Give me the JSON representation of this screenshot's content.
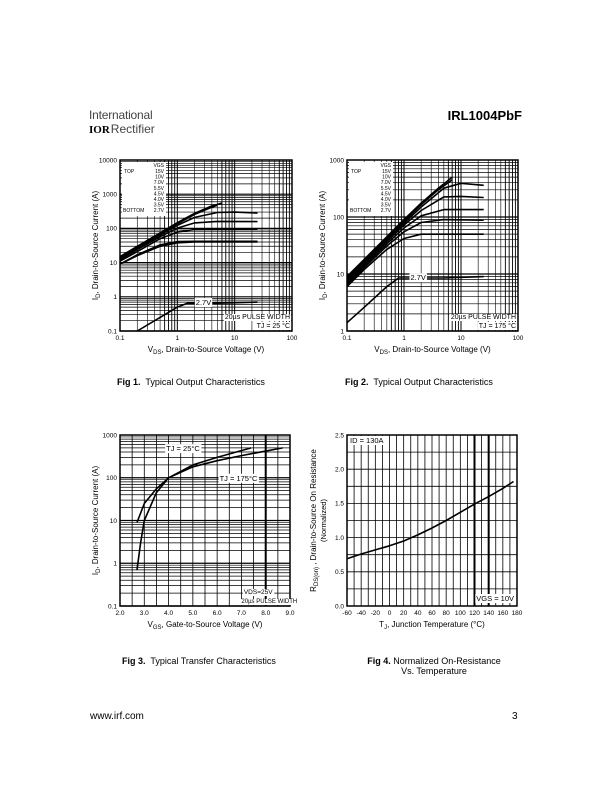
{
  "header": {
    "logo_line1": "International",
    "logo_mark": "IOR",
    "logo_line2": "Rectifier",
    "part_number": "IRL1004PbF"
  },
  "footer": {
    "url": "www.irf.com",
    "page": "3"
  },
  "captions": [
    {
      "fig": "Fig 1.",
      "text": "Typical Output Characteristics"
    },
    {
      "fig": "Fig 2.",
      "text": "Typical Output Characteristics"
    },
    {
      "fig": "Fig 3.",
      "text": "Typical Transfer Characteristics"
    },
    {
      "fig": "Fig 4.",
      "text": "Normalized On-Resistance",
      "text2": "Vs. Temperature"
    }
  ],
  "chart_data": [
    {
      "type": "line",
      "xscale": "log",
      "yscale": "log",
      "xlim": [
        0.1,
        100
      ],
      "ylim": [
        0.1,
        10000
      ],
      "xticks": [
        "0.1",
        "1",
        "10",
        "100"
      ],
      "yticks": [
        "0.1",
        "1",
        "10",
        "100",
        "1000",
        "10000"
      ],
      "xlabel": {
        "sym": "V",
        "sub": "DS",
        "rest": ", Drain-to-Source Voltage (V)"
      },
      "ylabel": {
        "sym": "I",
        "sub": "D",
        "rest": ", Drain-to-Source Current (A)"
      },
      "legend": {
        "header": "VGS",
        "top": "TOP",
        "bottom": "BOTTOM",
        "entries": [
          "15V",
          "10V",
          "7.0V",
          "5.5V",
          "4.5V",
          "4.0V",
          "3.5V",
          "2.7V"
        ]
      },
      "annotations": [
        "2.7V",
        "20µs PULSE WIDTH",
        "TJ = 25 °C"
      ],
      "grid": true,
      "series": [
        {
          "name": "15V",
          "points": [
            [
              0.1,
              15
            ],
            [
              0.2,
              30
            ],
            [
              0.5,
              74
            ],
            [
              1,
              147
            ],
            [
              2,
              277
            ],
            [
              4,
              455
            ],
            [
              6,
              545
            ]
          ]
        },
        {
          "name": "10V",
          "points": [
            [
              0.1,
              14
            ],
            [
              0.2,
              28
            ],
            [
              0.5,
              69
            ],
            [
              1,
              136
            ],
            [
              2,
              256
            ],
            [
              4,
              420
            ],
            [
              5,
              470
            ]
          ]
        },
        {
          "name": "7.0V",
          "points": [
            [
              0.1,
              13
            ],
            [
              0.2,
              26
            ],
            [
              0.5,
              64
            ],
            [
              1,
              122
            ],
            [
              2,
              210
            ],
            [
              5,
              292
            ],
            [
              10,
              300
            ],
            [
              25,
              280
            ]
          ]
        },
        {
          "name": "5.5V",
          "points": [
            [
              0.1,
              12
            ],
            [
              0.2,
              24
            ],
            [
              0.5,
              57
            ],
            [
              1,
              102
            ],
            [
              2,
              145
            ],
            [
              5,
              160
            ],
            [
              25,
              158
            ]
          ]
        },
        {
          "name": "4.5V",
          "points": [
            [
              0.1,
              11
            ],
            [
              0.2,
              21
            ],
            [
              0.5,
              50
            ],
            [
              1,
              78
            ],
            [
              2,
              93
            ],
            [
              5,
              95
            ],
            [
              25,
              95
            ]
          ]
        },
        {
          "name": "4.0V",
          "points": [
            [
              0.1,
              9
            ],
            [
              0.2,
              17
            ],
            [
              0.5,
              33
            ],
            [
              1,
              41
            ],
            [
              2,
              42
            ],
            [
              25,
              42
            ]
          ]
        },
        {
          "name": "3.5V",
          "points": [
            [
              0.1,
              9
            ],
            [
              0.2,
              16
            ],
            [
              0.5,
              30
            ],
            [
              1,
              38
            ],
            [
              2,
              40
            ],
            [
              25,
              40
            ]
          ]
        },
        {
          "name": "2.7V",
          "points": [
            [
              0.2,
              0.1
            ],
            [
              0.5,
              0.25
            ],
            [
              1,
              0.5
            ],
            [
              1.5,
              0.65
            ],
            [
              5,
              0.65
            ],
            [
              25,
              0.7
            ]
          ]
        }
      ]
    },
    {
      "type": "line",
      "xscale": "log",
      "yscale": "log",
      "xlim": [
        0.1,
        100
      ],
      "ylim": [
        1,
        1000
      ],
      "xticks": [
        "0.1",
        "1",
        "10",
        "100"
      ],
      "yticks": [
        "1",
        "10",
        "100",
        "1000"
      ],
      "xlabel": {
        "sym": "V",
        "sub": "DS",
        "rest": ", Drain-to-Source Voltage (V)"
      },
      "ylabel": {
        "sym": "I",
        "sub": "D",
        "rest": ", Drain-to-Source Current (A)"
      },
      "legend": {
        "header": "VGS",
        "top": "TOP",
        "bottom": "BOTTOM",
        "entries": [
          "15V",
          "10V",
          "7.0V",
          "5.5V",
          "4.5V",
          "4.0V",
          "3.5V",
          "2.7V"
        ]
      },
      "annotations": [
        "2.7V",
        "20µs PULSE WIDTH",
        "TJ = 175 °C"
      ],
      "grid": true,
      "series": [
        {
          "name": "15V",
          "points": [
            [
              0.1,
              9
            ],
            [
              0.2,
              18
            ],
            [
              0.5,
              45
            ],
            [
              1,
              90
            ],
            [
              2,
              175
            ],
            [
              4,
              320
            ],
            [
              7,
              500
            ]
          ]
        },
        {
          "name": "10V",
          "points": [
            [
              0.1,
              8.5
            ],
            [
              0.2,
              17
            ],
            [
              0.5,
              42
            ],
            [
              1,
              84
            ],
            [
              2,
              165
            ],
            [
              4,
              300
            ],
            [
              7,
              450
            ]
          ]
        },
        {
          "name": "7.0V",
          "points": [
            [
              0.1,
              8
            ],
            [
              0.2,
              16
            ],
            [
              0.5,
              40
            ],
            [
              1,
              78
            ],
            [
              2,
              150
            ],
            [
              5,
              320
            ],
            [
              10,
              390
            ],
            [
              25,
              360
            ]
          ]
        },
        {
          "name": "5.5V",
          "points": [
            [
              0.1,
              7.5
            ],
            [
              0.2,
              15
            ],
            [
              0.5,
              37
            ],
            [
              1,
              72
            ],
            [
              2,
              130
            ],
            [
              5,
              225
            ],
            [
              10,
              230
            ],
            [
              25,
              220
            ]
          ]
        },
        {
          "name": "4.5V",
          "points": [
            [
              0.1,
              7
            ],
            [
              0.2,
              14
            ],
            [
              0.5,
              34
            ],
            [
              1,
              64
            ],
            [
              2,
              105
            ],
            [
              5,
              135
            ],
            [
              25,
              135
            ]
          ]
        },
        {
          "name": "4.0V",
          "points": [
            [
              0.1,
              6.5
            ],
            [
              0.2,
              13
            ],
            [
              0.5,
              31
            ],
            [
              1,
              55
            ],
            [
              2,
              80
            ],
            [
              5,
              90
            ],
            [
              25,
              88
            ]
          ]
        },
        {
          "name": "3.5V",
          "points": [
            [
              0.1,
              6
            ],
            [
              0.2,
              12
            ],
            [
              0.5,
              27
            ],
            [
              1,
              42
            ],
            [
              2,
              50
            ],
            [
              5,
              50
            ],
            [
              25,
              50
            ]
          ]
        },
        {
          "name": "2.7V",
          "points": [
            [
              0.1,
              1.4
            ],
            [
              0.2,
              2.6
            ],
            [
              0.5,
              6
            ],
            [
              0.8,
              8.5
            ],
            [
              5,
              8.5
            ],
            [
              25,
              9
            ]
          ]
        }
      ]
    },
    {
      "type": "line",
      "xscale": "linear",
      "yscale": "log",
      "xlim": [
        2,
        9
      ],
      "ylim": [
        0.1,
        1000
      ],
      "xticks": [
        "2.0",
        "3.0",
        "4.0",
        "5.0",
        "6.0",
        "7.0",
        "8.0",
        "9.0"
      ],
      "yticks": [
        "0.1",
        "1",
        "10",
        "100",
        "1000"
      ],
      "xlabel": {
        "sym": "V",
        "sub": "GS",
        "rest": ", Gate-to-Source Voltage (V)"
      },
      "ylabel": {
        "sym": "I",
        "sub": "D",
        "rest": ", Drain-to-Source Current (A)"
      },
      "annotations": [
        "TJ = 25°C",
        "TJ = 175°C",
        "VDS=25V",
        "20µs PULSE WIDTH"
      ],
      "grid": true,
      "series": [
        {
          "name": "TJ = 25°C",
          "points": [
            [
              2.7,
              9
            ],
            [
              3,
              25
            ],
            [
              3.5,
              55
            ],
            [
              4,
              100
            ],
            [
              5,
              200
            ],
            [
              6,
              300
            ],
            [
              7.4,
              500
            ]
          ]
        },
        {
          "name": "TJ = 175°C",
          "points": [
            [
              2.7,
              0.7
            ],
            [
              2.85,
              3
            ],
            [
              3,
              10
            ],
            [
              3.5,
              45
            ],
            [
              4,
              100
            ],
            [
              5,
              180
            ],
            [
              6,
              250
            ],
            [
              7,
              330
            ],
            [
              8.7,
              500
            ]
          ]
        }
      ]
    },
    {
      "type": "line",
      "xscale": "linear",
      "yscale": "linear",
      "xlim": [
        -60,
        180
      ],
      "ylim": [
        0,
        2.5
      ],
      "xticks": [
        "-60",
        "-40",
        "-20",
        "0",
        "20",
        "40",
        "60",
        "80",
        "100",
        "120",
        "140",
        "160",
        "180"
      ],
      "yticks": [
        "0.0",
        "0.5",
        "1.0",
        "1.5",
        "2.0",
        "2.5"
      ],
      "xlabel": {
        "sym": "T",
        "sub": "J",
        "rest": ", Junction Temperature (°C)"
      },
      "ylabel": {
        "sym": "R",
        "sub": "DS(on)",
        "rest": " , Drain-to-Source On Resistance",
        "line2": "(Normalized)"
      },
      "annotations": [
        "ID = 130A",
        "VGS = 10V"
      ],
      "grid": true,
      "series": [
        {
          "points": [
            [
              -60,
              0.69
            ],
            [
              -40,
              0.76
            ],
            [
              -20,
              0.82
            ],
            [
              0,
              0.88
            ],
            [
              20,
              0.95
            ],
            [
              40,
              1.04
            ],
            [
              60,
              1.14
            ],
            [
              80,
              1.25
            ],
            [
              100,
              1.37
            ],
            [
              120,
              1.49
            ],
            [
              140,
              1.6
            ],
            [
              160,
              1.72
            ],
            [
              175,
              1.82
            ]
          ]
        }
      ]
    }
  ]
}
